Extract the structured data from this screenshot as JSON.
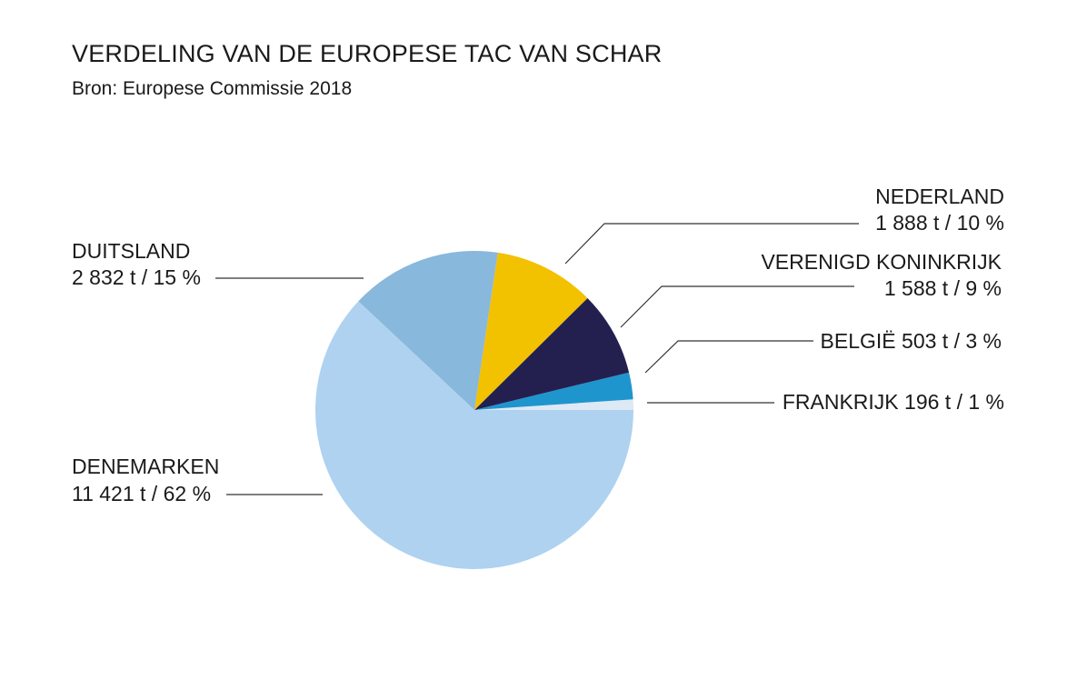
{
  "title": "VERDELING VAN DE EUROPESE TAC VAN SCHAR",
  "subtitle": "Bron: Europese Commissie 2018",
  "chart_data": {
    "type": "pie",
    "title": "VERDELING VAN DE EUROPESE TAC VAN SCHAR",
    "subtitle": "Bron: Europese Commissie 2018",
    "slices": [
      {
        "label": "FRANKRIJK",
        "value_text": "196 t / 1 %",
        "tonnes": 196,
        "percent": 1,
        "color": "#dde9f4"
      },
      {
        "label": "BELGIË",
        "value_text": "503 t / 3 %",
        "tonnes": 503,
        "percent": 3,
        "color": "#1f95cd"
      },
      {
        "label": "VERENIGD KONINKRIJK",
        "value_text": "1 588 t / 9 %",
        "tonnes": 1588,
        "percent": 9,
        "color": "#232050"
      },
      {
        "label": "NEDERLAND",
        "value_text": "1 888 t / 10 %",
        "tonnes": 1888,
        "percent": 10,
        "color": "#f2c100"
      },
      {
        "label": "DUITSLAND",
        "value_text": "2 832 t / 15 %",
        "tonnes": 2832,
        "percent": 15,
        "color": "#88b8dc"
      },
      {
        "label": "DENEMARKEN",
        "value_text": "11 421 t / 62 %",
        "tonnes": 11421,
        "percent": 62,
        "color": "#aed2f0"
      }
    ]
  }
}
